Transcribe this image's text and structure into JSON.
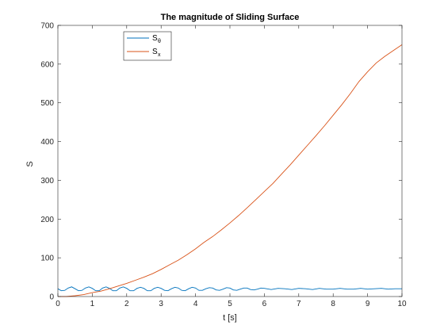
{
  "chart_data": {
    "type": "line",
    "title": "The magnitude of Sliding Surface",
    "xlabel": "t [s]",
    "ylabel": "S",
    "xlim": [
      0,
      10
    ],
    "ylim": [
      0,
      700
    ],
    "xticks": [
      0,
      1,
      2,
      3,
      4,
      5,
      6,
      7,
      8,
      9,
      10
    ],
    "yticks": [
      0,
      100,
      200,
      300,
      400,
      500,
      600,
      700
    ],
    "grid": false,
    "legend_position": "top-left",
    "series": [
      {
        "name": "S",
        "name_subscript": "θ",
        "color": "#0072BD",
        "x": [
          0,
          0.1,
          0.2,
          0.3,
          0.4,
          0.5,
          0.6,
          0.7,
          0.8,
          0.9,
          1.0,
          1.1,
          1.2,
          1.3,
          1.4,
          1.5,
          1.6,
          1.7,
          1.8,
          1.9,
          2.0,
          2.1,
          2.2,
          2.3,
          2.4,
          2.5,
          2.6,
          2.7,
          2.8,
          2.9,
          3.0,
          3.1,
          3.2,
          3.3,
          3.4,
          3.5,
          3.6,
          3.7,
          3.8,
          3.9,
          4.0,
          4.1,
          4.2,
          4.3,
          4.4,
          4.5,
          4.6,
          4.7,
          4.8,
          4.9,
          5.0,
          5.1,
          5.2,
          5.3,
          5.4,
          5.5,
          5.6,
          5.7,
          5.8,
          5.9,
          6.0,
          6.2,
          6.4,
          6.6,
          6.8,
          7.0,
          7.2,
          7.4,
          7.6,
          7.8,
          8.0,
          8.2,
          8.4,
          8.6,
          8.8,
          9.0,
          9.2,
          9.4,
          9.6,
          9.8,
          10.0
        ],
        "y": [
          20,
          15,
          16,
          22,
          25,
          20,
          15,
          16,
          22,
          25,
          21,
          15,
          15,
          22,
          25,
          21,
          15,
          15,
          22,
          25,
          21,
          15,
          15,
          21,
          24,
          21,
          15,
          15,
          21,
          24,
          21,
          16,
          15,
          20,
          24,
          22,
          16,
          15,
          20,
          24,
          22,
          16,
          16,
          20,
          23,
          22,
          17,
          16,
          19,
          23,
          22,
          17,
          16,
          19,
          22,
          22,
          18,
          17,
          19,
          22,
          21,
          18,
          21,
          20,
          18,
          21,
          20,
          18,
          21,
          19,
          19,
          21,
          19,
          19,
          21,
          19,
          20,
          21,
          19,
          20,
          20
        ]
      },
      {
        "name": "S",
        "name_subscript": "x",
        "color": "#D95319",
        "x": [
          0,
          0.25,
          0.5,
          0.75,
          1.0,
          1.25,
          1.5,
          1.75,
          2.0,
          2.25,
          2.5,
          2.75,
          3.0,
          3.25,
          3.5,
          3.75,
          4.0,
          4.25,
          4.5,
          4.75,
          5.0,
          5.25,
          5.5,
          5.75,
          6.0,
          6.25,
          6.5,
          6.75,
          7.0,
          7.25,
          7.5,
          7.75,
          8.0,
          8.25,
          8.5,
          8.75,
          9.0,
          9.25,
          9.5,
          9.75,
          10.0
        ],
        "y": [
          0,
          0,
          2,
          5,
          10,
          14,
          20,
          27,
          34,
          42,
          50,
          59,
          70,
          82,
          94,
          108,
          123,
          140,
          155,
          172,
          190,
          209,
          229,
          250,
          271,
          292,
          316,
          340,
          365,
          390,
          415,
          441,
          468,
          495,
          524,
          555,
          580,
          603,
          620,
          635,
          650
        ]
      }
    ]
  }
}
